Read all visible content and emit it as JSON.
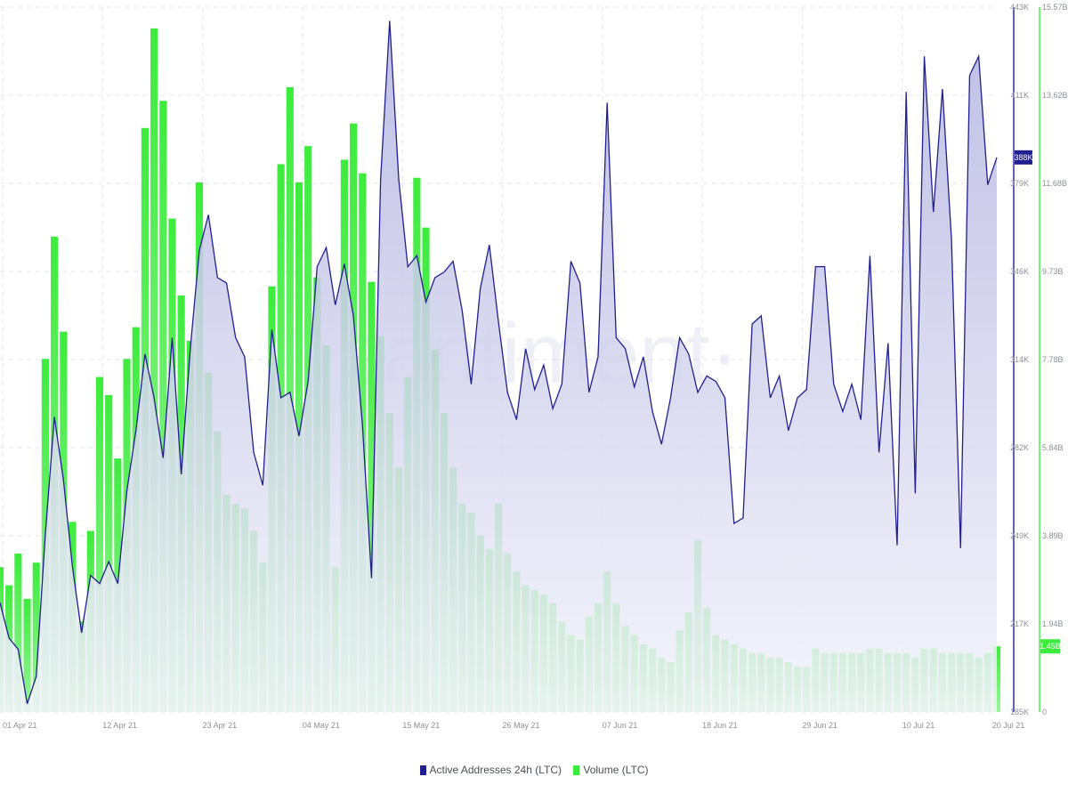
{
  "colors": {
    "active_line": "#1f1f8f",
    "active_fill_top": "#b4b4e0",
    "active_fill_bottom": "#f3f3fb",
    "volume_bar": "#3cec3c",
    "volume_bar_light": "#9ef59e",
    "grid": "#e3e5ea",
    "axis_line_left": "#1f1f8f",
    "axis_line_right": "#3cec3c"
  },
  "watermark": "·santiment·",
  "legend": [
    {
      "label": "Active Addresses 24h (LTC)",
      "color": "#1f1f8f"
    },
    {
      "label": "Volume (LTC)",
      "color": "#3cec3c"
    }
  ],
  "chart_data": {
    "type": "line+bar",
    "x_tick_labels": [
      "01 Apr 21",
      "12 Apr 21",
      "23 Apr 21",
      "04 May 21",
      "15 May 21",
      "26 May 21",
      "07 Jun 21",
      "18 Jun 21",
      "29 Jun 21",
      "10 Jul 21",
      "20 Jul 21"
    ],
    "x_range": [
      "2021-04-01",
      "2021-07-20"
    ],
    "axes": {
      "left_ticks": [
        "443K",
        "411K",
        "379K",
        "346K",
        "314K",
        "282K",
        "249K",
        "217K",
        "185K"
      ],
      "right_ticks": [
        "15.57B",
        "13.62B",
        "11.68B",
        "9.73B",
        "7.78B",
        "5.84B",
        "3.89B",
        "1.94B",
        "0"
      ],
      "active_ylim": [
        185000,
        443000
      ],
      "volume_ylim": [
        0,
        15570000000
      ]
    },
    "current_values": {
      "active": "388K",
      "volume": "1.45B"
    },
    "grid": true,
    "legend_position": "bottom",
    "series": [
      {
        "name": "Active Addresses 24h (LTC)",
        "type": "area-line",
        "points": [
          [
            "2021-04-01",
            225000
          ],
          [
            "2021-04-02",
            212000
          ],
          [
            "2021-04-03",
            208000
          ],
          [
            "2021-04-04",
            188000
          ],
          [
            "2021-04-05",
            198000
          ],
          [
            "2021-04-06",
            250000
          ],
          [
            "2021-04-07",
            293000
          ],
          [
            "2021-04-08",
            270000
          ],
          [
            "2021-04-09",
            238000
          ],
          [
            "2021-04-10",
            214000
          ],
          [
            "2021-04-11",
            235000
          ],
          [
            "2021-04-12",
            232000
          ],
          [
            "2021-04-13",
            240000
          ],
          [
            "2021-04-14",
            232000
          ],
          [
            "2021-04-15",
            266000
          ],
          [
            "2021-04-16",
            288000
          ],
          [
            "2021-04-17",
            316000
          ],
          [
            "2021-04-18",
            300000
          ],
          [
            "2021-04-19",
            278000
          ],
          [
            "2021-04-20",
            322000
          ],
          [
            "2021-04-21",
            272000
          ],
          [
            "2021-04-22",
            318000
          ],
          [
            "2021-04-23",
            354000
          ],
          [
            "2021-04-24",
            367000
          ],
          [
            "2021-04-25",
            344000
          ],
          [
            "2021-04-26",
            342000
          ],
          [
            "2021-04-27",
            322000
          ],
          [
            "2021-04-28",
            315000
          ],
          [
            "2021-04-29",
            280000
          ],
          [
            "2021-04-30",
            268000
          ],
          [
            "2021-05-01",
            325000
          ],
          [
            "2021-05-02",
            300000
          ],
          [
            "2021-05-03",
            302000
          ],
          [
            "2021-05-04",
            286000
          ],
          [
            "2021-05-05",
            306000
          ],
          [
            "2021-05-06",
            348000
          ],
          [
            "2021-05-07",
            355000
          ],
          [
            "2021-05-08",
            334000
          ],
          [
            "2021-05-09",
            349000
          ],
          [
            "2021-05-10",
            330000
          ],
          [
            "2021-05-11",
            290000
          ],
          [
            "2021-05-12",
            234000
          ],
          [
            "2021-05-13",
            380000
          ],
          [
            "2021-05-14",
            438000
          ],
          [
            "2021-05-15",
            380000
          ],
          [
            "2021-05-16",
            348000
          ],
          [
            "2021-05-17",
            352000
          ],
          [
            "2021-05-18",
            335000
          ],
          [
            "2021-05-19",
            344000
          ],
          [
            "2021-05-20",
            346000
          ],
          [
            "2021-05-21",
            350000
          ],
          [
            "2021-05-22",
            332000
          ],
          [
            "2021-05-23",
            305000
          ],
          [
            "2021-05-24",
            340000
          ],
          [
            "2021-05-25",
            356000
          ],
          [
            "2021-05-26",
            328000
          ],
          [
            "2021-05-27",
            302000
          ],
          [
            "2021-05-28",
            292000
          ],
          [
            "2021-05-29",
            318000
          ],
          [
            "2021-05-30",
            303000
          ],
          [
            "2021-05-31",
            312000
          ],
          [
            "2021-06-01",
            296000
          ],
          [
            "2021-06-02",
            305000
          ],
          [
            "2021-06-03",
            350000
          ],
          [
            "2021-06-04",
            342000
          ],
          [
            "2021-06-05",
            302000
          ],
          [
            "2021-06-06",
            315000
          ],
          [
            "2021-06-07",
            408000
          ],
          [
            "2021-06-08",
            322000
          ],
          [
            "2021-06-09",
            318000
          ],
          [
            "2021-06-10",
            304000
          ],
          [
            "2021-06-11",
            315000
          ],
          [
            "2021-06-12",
            295000
          ],
          [
            "2021-06-13",
            283000
          ],
          [
            "2021-06-14",
            300000
          ],
          [
            "2021-06-15",
            322000
          ],
          [
            "2021-06-16",
            316000
          ],
          [
            "2021-06-17",
            302000
          ],
          [
            "2021-06-18",
            308000
          ],
          [
            "2021-06-19",
            306000
          ],
          [
            "2021-06-20",
            300000
          ],
          [
            "2021-06-21",
            254000
          ],
          [
            "2021-06-22",
            256000
          ],
          [
            "2021-06-23",
            327000
          ],
          [
            "2021-06-24",
            330000
          ],
          [
            "2021-06-25",
            300000
          ],
          [
            "2021-06-26",
            308000
          ],
          [
            "2021-06-27",
            288000
          ],
          [
            "2021-06-28",
            300000
          ],
          [
            "2021-06-29",
            303000
          ],
          [
            "2021-06-30",
            348000
          ],
          [
            "2021-07-01",
            348000
          ],
          [
            "2021-07-02",
            305000
          ],
          [
            "2021-07-03",
            295000
          ],
          [
            "2021-07-04",
            305000
          ],
          [
            "2021-07-05",
            292000
          ],
          [
            "2021-07-06",
            352000
          ],
          [
            "2021-07-07",
            280000
          ],
          [
            "2021-07-08",
            320000
          ],
          [
            "2021-07-09",
            246000
          ],
          [
            "2021-07-10",
            412000
          ],
          [
            "2021-07-11",
            265000
          ],
          [
            "2021-07-12",
            425000
          ],
          [
            "2021-07-13",
            368000
          ],
          [
            "2021-07-14",
            413000
          ],
          [
            "2021-07-15",
            358000
          ],
          [
            "2021-07-16",
            245000
          ],
          [
            "2021-07-17",
            418000
          ],
          [
            "2021-07-18",
            425000
          ],
          [
            "2021-07-19",
            378000
          ],
          [
            "2021-07-20",
            388000
          ]
        ]
      },
      {
        "name": "Volume (LTC)",
        "type": "bar",
        "points": [
          [
            "2021-04-01",
            3200000000
          ],
          [
            "2021-04-02",
            2800000000
          ],
          [
            "2021-04-03",
            3500000000
          ],
          [
            "2021-04-04",
            2500000000
          ],
          [
            "2021-04-05",
            3300000000
          ],
          [
            "2021-04-06",
            7800000000
          ],
          [
            "2021-04-07",
            10500000000
          ],
          [
            "2021-04-08",
            8400000000
          ],
          [
            "2021-04-09",
            4200000000
          ],
          [
            "2021-04-10",
            2000000000
          ],
          [
            "2021-04-11",
            4000000000
          ],
          [
            "2021-04-12",
            7400000000
          ],
          [
            "2021-04-13",
            7000000000
          ],
          [
            "2021-04-14",
            5600000000
          ],
          [
            "2021-04-15",
            7800000000
          ],
          [
            "2021-04-16",
            8500000000
          ],
          [
            "2021-04-17",
            12900000000
          ],
          [
            "2021-04-18",
            15100000000
          ],
          [
            "2021-04-19",
            13500000000
          ],
          [
            "2021-04-20",
            10900000000
          ],
          [
            "2021-04-21",
            9200000000
          ],
          [
            "2021-04-22",
            8200000000
          ],
          [
            "2021-04-23",
            11700000000
          ],
          [
            "2021-04-24",
            7500000000
          ],
          [
            "2021-04-25",
            6200000000
          ],
          [
            "2021-04-26",
            4800000000
          ],
          [
            "2021-04-27",
            4600000000
          ],
          [
            "2021-04-28",
            4500000000
          ],
          [
            "2021-04-29",
            4000000000
          ],
          [
            "2021-04-30",
            3300000000
          ],
          [
            "2021-05-01",
            9400000000
          ],
          [
            "2021-05-02",
            12100000000
          ],
          [
            "2021-05-03",
            13800000000
          ],
          [
            "2021-05-04",
            11700000000
          ],
          [
            "2021-05-05",
            12500000000
          ],
          [
            "2021-05-06",
            9600000000
          ],
          [
            "2021-05-07",
            8100000000
          ],
          [
            "2021-05-08",
            3200000000
          ],
          [
            "2021-05-09",
            12200000000
          ],
          [
            "2021-05-10",
            13000000000
          ],
          [
            "2021-05-11",
            11900000000
          ],
          [
            "2021-05-12",
            9500000000
          ],
          [
            "2021-05-13",
            8300000000
          ],
          [
            "2021-05-14",
            6600000000
          ],
          [
            "2021-05-15",
            5400000000
          ],
          [
            "2021-05-16",
            7400000000
          ],
          [
            "2021-05-17",
            11800000000
          ],
          [
            "2021-05-18",
            10700000000
          ],
          [
            "2021-05-19",
            8000000000
          ],
          [
            "2021-05-20",
            6600000000
          ],
          [
            "2021-05-21",
            5400000000
          ],
          [
            "2021-05-22",
            4600000000
          ],
          [
            "2021-05-23",
            4400000000
          ],
          [
            "2021-05-24",
            3900000000
          ],
          [
            "2021-05-25",
            3600000000
          ],
          [
            "2021-05-26",
            4600000000
          ],
          [
            "2021-05-27",
            3500000000
          ],
          [
            "2021-05-28",
            3100000000
          ],
          [
            "2021-05-29",
            2800000000
          ],
          [
            "2021-05-30",
            2700000000
          ],
          [
            "2021-05-31",
            2600000000
          ],
          [
            "2021-06-01",
            2400000000
          ],
          [
            "2021-06-02",
            2000000000
          ],
          [
            "2021-06-03",
            1700000000
          ],
          [
            "2021-06-04",
            1600000000
          ],
          [
            "2021-06-05",
            2100000000
          ],
          [
            "2021-06-06",
            2400000000
          ],
          [
            "2021-06-07",
            3100000000
          ],
          [
            "2021-06-08",
            2400000000
          ],
          [
            "2021-06-09",
            1900000000
          ],
          [
            "2021-06-10",
            1700000000
          ],
          [
            "2021-06-11",
            1500000000
          ],
          [
            "2021-06-12",
            1400000000
          ],
          [
            "2021-06-13",
            1200000000
          ],
          [
            "2021-06-14",
            1100000000
          ],
          [
            "2021-06-15",
            1800000000
          ],
          [
            "2021-06-16",
            2200000000
          ],
          [
            "2021-06-17",
            3800000000
          ],
          [
            "2021-06-18",
            2300000000
          ],
          [
            "2021-06-19",
            1700000000
          ],
          [
            "2021-06-20",
            1600000000
          ],
          [
            "2021-06-21",
            1500000000
          ],
          [
            "2021-06-22",
            1400000000
          ],
          [
            "2021-06-23",
            1300000000
          ],
          [
            "2021-06-24",
            1300000000
          ],
          [
            "2021-06-25",
            1200000000
          ],
          [
            "2021-06-26",
            1200000000
          ],
          [
            "2021-06-27",
            1100000000
          ],
          [
            "2021-06-28",
            1000000000
          ],
          [
            "2021-06-29",
            1000000000
          ],
          [
            "2021-06-30",
            1400000000
          ],
          [
            "2021-07-01",
            1300000000
          ],
          [
            "2021-07-02",
            1300000000
          ],
          [
            "2021-07-03",
            1300000000
          ],
          [
            "2021-07-04",
            1300000000
          ],
          [
            "2021-07-05",
            1300000000
          ],
          [
            "2021-07-06",
            1400000000
          ],
          [
            "2021-07-07",
            1400000000
          ],
          [
            "2021-07-08",
            1300000000
          ],
          [
            "2021-07-09",
            1300000000
          ],
          [
            "2021-07-10",
            1300000000
          ],
          [
            "2021-07-11",
            1200000000
          ],
          [
            "2021-07-12",
            1400000000
          ],
          [
            "2021-07-13",
            1400000000
          ],
          [
            "2021-07-14",
            1300000000
          ],
          [
            "2021-07-15",
            1300000000
          ],
          [
            "2021-07-16",
            1300000000
          ],
          [
            "2021-07-17",
            1300000000
          ],
          [
            "2021-07-18",
            1200000000
          ],
          [
            "2021-07-19",
            1300000000
          ],
          [
            "2021-07-20",
            1450000000
          ]
        ]
      }
    ]
  }
}
